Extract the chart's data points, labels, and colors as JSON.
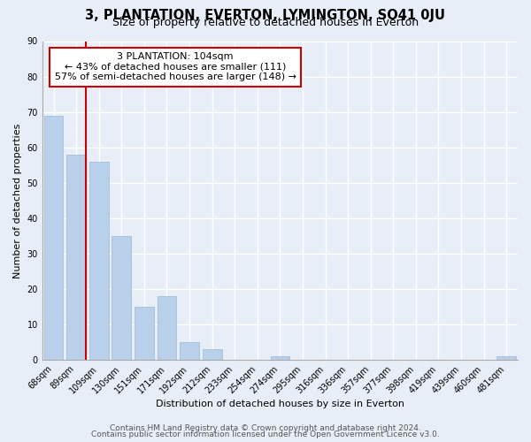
{
  "title": "3, PLANTATION, EVERTON, LYMINGTON, SO41 0JU",
  "subtitle": "Size of property relative to detached houses in Everton",
  "xlabel": "Distribution of detached houses by size in Everton",
  "ylabel": "Number of detached properties",
  "bar_labels": [
    "68sqm",
    "89sqm",
    "109sqm",
    "130sqm",
    "151sqm",
    "171sqm",
    "192sqm",
    "212sqm",
    "233sqm",
    "254sqm",
    "274sqm",
    "295sqm",
    "316sqm",
    "336sqm",
    "357sqm",
    "377sqm",
    "398sqm",
    "419sqm",
    "439sqm",
    "460sqm",
    "481sqm"
  ],
  "bar_values": [
    69,
    58,
    56,
    35,
    15,
    18,
    5,
    3,
    0,
    0,
    1,
    0,
    0,
    0,
    0,
    0,
    0,
    0,
    0,
    0,
    1
  ],
  "bar_color": "#b8d0ea",
  "bar_edge_color": "#9ab8d8",
  "ylim": [
    0,
    90
  ],
  "yticks": [
    0,
    10,
    20,
    30,
    40,
    50,
    60,
    70,
    80,
    90
  ],
  "property_line_color": "#cc0000",
  "annotation_title": "3 PLANTATION: 104sqm",
  "annotation_line1": "← 43% of detached houses are smaller (111)",
  "annotation_line2": "57% of semi-detached houses are larger (148) →",
  "annotation_box_color": "#ffffff",
  "annotation_box_edge": "#cc0000",
  "footer1": "Contains HM Land Registry data © Crown copyright and database right 2024.",
  "footer2": "Contains public sector information licensed under the Open Government Licence v3.0.",
  "background_color": "#e8eef7",
  "grid_color": "#ffffff",
  "title_fontsize": 10.5,
  "subtitle_fontsize": 9,
  "axis_label_fontsize": 8,
  "tick_fontsize": 7,
  "annotation_fontsize": 8,
  "footer_fontsize": 6.5
}
